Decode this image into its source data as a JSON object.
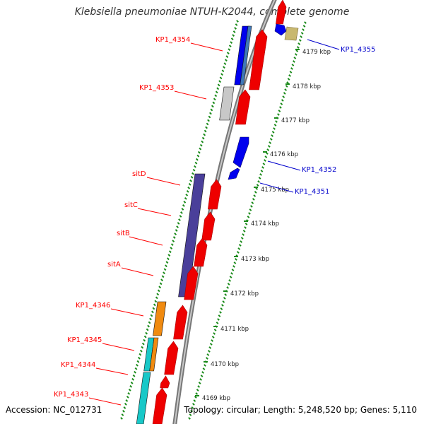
{
  "title": "Klebsiella pneumoniae NTUH-K2044, complete genome",
  "accession": "Accession: NC_012731",
  "topology": "Topology: circular; Length: 5,248,520 bp; Genes: 5,110",
  "ticks": [
    "4179 kbp",
    "4178 kbp",
    "4177 kbp",
    "4176 kbp",
    "4175 kbp",
    "4174 kbp",
    "4173 kbp",
    "4172 kbp",
    "4171 kbp",
    "4170 kbp",
    "4169 kbp"
  ],
  "left_genes": [
    "KP1_4354",
    "KP1_4353",
    "sitD",
    "sitC",
    "sitB",
    "sitA",
    "KP1_4346",
    "KP1_4345",
    "KP1_4344",
    "KP1_4343"
  ],
  "right_genes": [
    "KP1_4355",
    "KP1_4352",
    "KP1_4351"
  ],
  "colors": {
    "label_left": "#ff0000",
    "label_right": "#0000cc",
    "backbone": "#9a9a9a",
    "ticks_dots": "#1a8a1a",
    "blue": "#0000ee",
    "steelblue": "#3f78b8",
    "grey": "#c8c8c8",
    "purple": "#4a3f9a",
    "orange": "#f08a10",
    "cyan": "#18c8c8",
    "red": "#ee0000",
    "khaki": "#c8b870"
  }
}
